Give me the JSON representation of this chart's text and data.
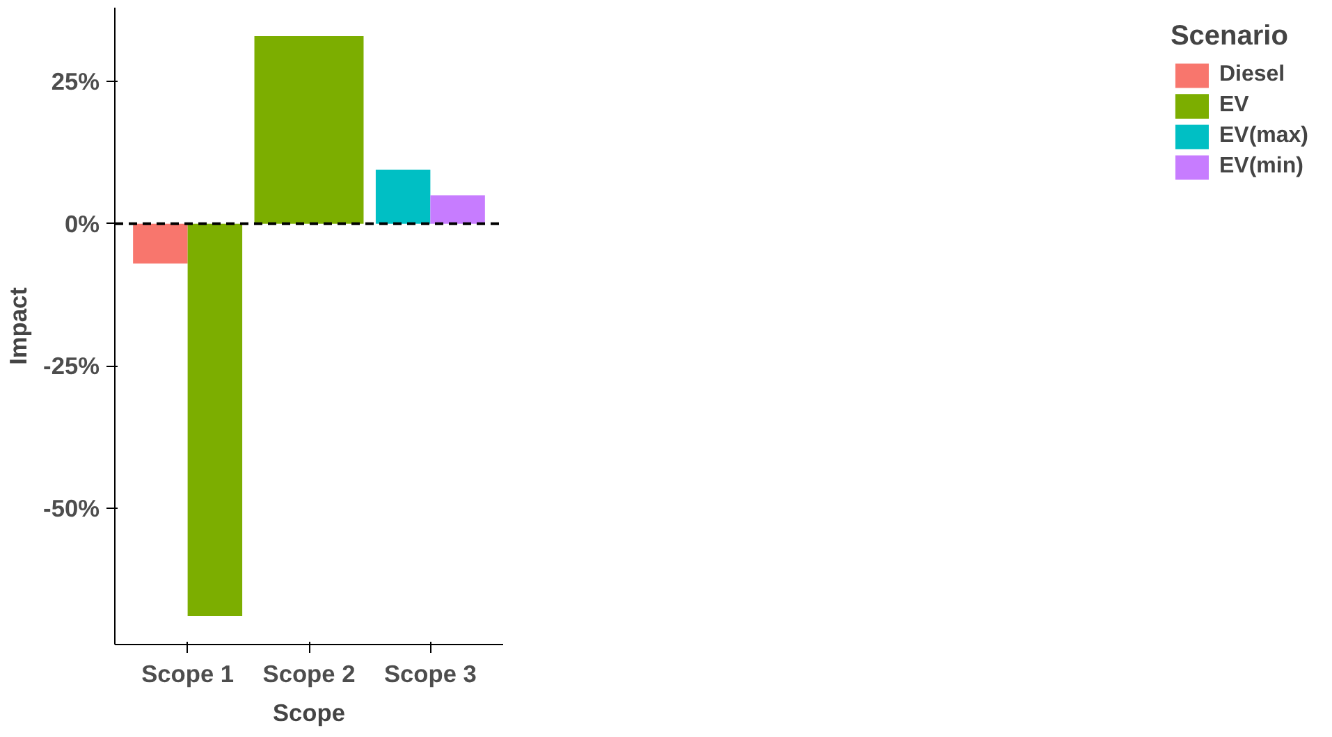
{
  "chart_data": {
    "type": "bar",
    "xlabel": "Scope",
    "ylabel": "Impact",
    "legend_title": "Scenario",
    "legend": "right",
    "grid": false,
    "categories": [
      "Scope 1",
      "Scope 2",
      "Scope 3"
    ],
    "series": [
      {
        "name": "Diesel",
        "color": "#f8766d",
        "values": [
          -7,
          null,
          null
        ]
      },
      {
        "name": "EV",
        "color": "#7cae00",
        "values": [
          -69,
          33,
          null
        ]
      },
      {
        "name": "EV(max)",
        "color": "#00bfc4",
        "values": [
          null,
          null,
          9.5
        ]
      },
      {
        "name": "EV(min)",
        "color": "#c77cff",
        "values": [
          null,
          null,
          5
        ]
      }
    ],
    "ylim": [
      -74,
      38
    ],
    "yticks": [
      {
        "value": -50,
        "label": "-50%"
      },
      {
        "value": -25,
        "label": "-25%"
      },
      {
        "value": 0,
        "label": "0%"
      },
      {
        "value": 25,
        "label": "25%"
      }
    ],
    "ref_lines": [
      {
        "axis": "y",
        "value": 0,
        "label": null,
        "color": "#000000",
        "line_style": "dashed"
      }
    ]
  }
}
